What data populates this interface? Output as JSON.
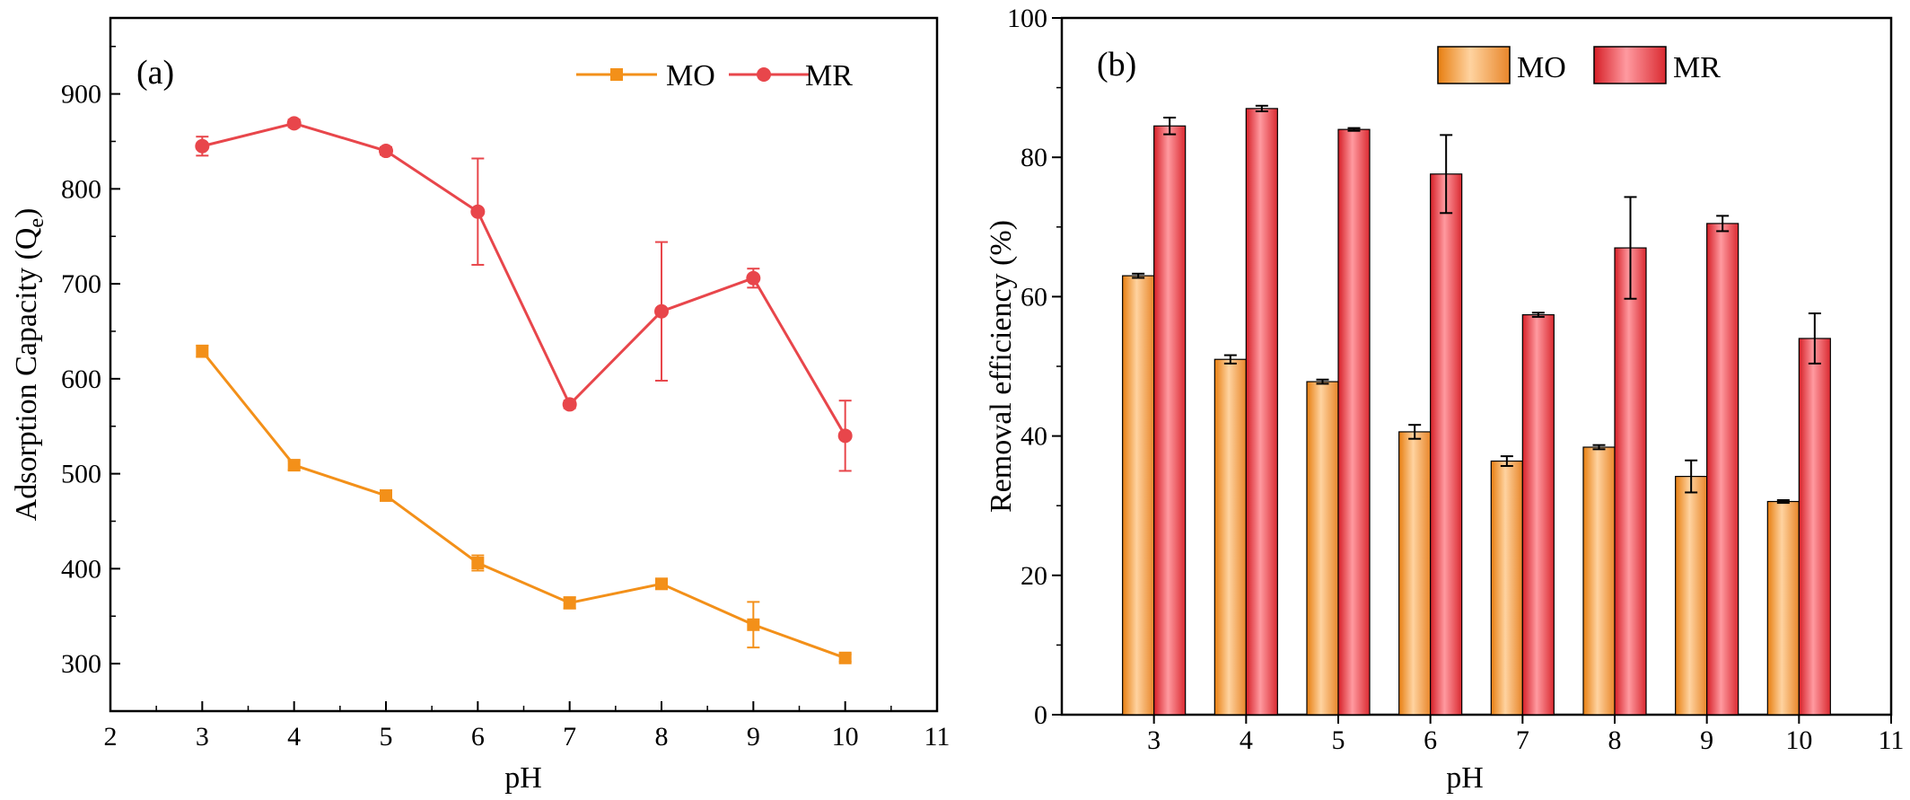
{
  "chart_data": [
    {
      "type": "line",
      "panel_label": "(a)",
      "xlabel": "pH",
      "ylabel": "Adsorption Capacity (Q",
      "ylabel_sub": "e",
      "ylabel_end": ")",
      "xlim": [
        2,
        11
      ],
      "ylim": [
        250,
        980
      ],
      "xticks": [
        2,
        3,
        4,
        5,
        6,
        7,
        8,
        9,
        10,
        11
      ],
      "yticks": [
        300,
        400,
        500,
        600,
        700,
        800,
        900
      ],
      "grid": false,
      "legend_position": "top-right",
      "x": [
        3,
        4,
        5,
        6,
        7,
        8,
        9,
        10
      ],
      "series": [
        {
          "name": "MO",
          "color": "#F39019",
          "marker": "square",
          "values": [
            629,
            509,
            477,
            406,
            364,
            384,
            341,
            306
          ],
          "errors": [
            6,
            5,
            4,
            8,
            6,
            5,
            24,
            4
          ]
        },
        {
          "name": "MR",
          "color": "#E8464B",
          "marker": "circle",
          "values": [
            845,
            869,
            840,
            776,
            573,
            671,
            706,
            540
          ],
          "errors": [
            10,
            4,
            4,
            56,
            4,
            73,
            10,
            37
          ]
        }
      ]
    },
    {
      "type": "bar",
      "panel_label": "(b)",
      "xlabel": "pH",
      "ylabel": "Removal efficiency (%)",
      "xlim": [
        2,
        11
      ],
      "ylim": [
        0,
        100
      ],
      "xticks": [
        3,
        4,
        5,
        6,
        7,
        8,
        9,
        10,
        11
      ],
      "yticks": [
        0,
        20,
        40,
        60,
        80,
        100
      ],
      "grid": false,
      "legend_position": "top",
      "categories": [
        3,
        4,
        5,
        6,
        7,
        8,
        9,
        10
      ],
      "series": [
        {
          "name": "MO",
          "color": "#F39A3A",
          "values": [
            63.0,
            51.0,
            47.8,
            40.6,
            36.4,
            38.4,
            34.2,
            30.6
          ],
          "errors": [
            0.3,
            0.6,
            0.3,
            1.0,
            0.7,
            0.3,
            2.3,
            0.2
          ]
        },
        {
          "name": "MR",
          "color": "#E8343B",
          "values": [
            84.5,
            87.0,
            84.0,
            77.6,
            57.4,
            67.0,
            70.5,
            54.0
          ],
          "errors": [
            1.2,
            0.4,
            0.2,
            5.6,
            0.3,
            7.3,
            1.1,
            3.6
          ]
        }
      ]
    }
  ]
}
